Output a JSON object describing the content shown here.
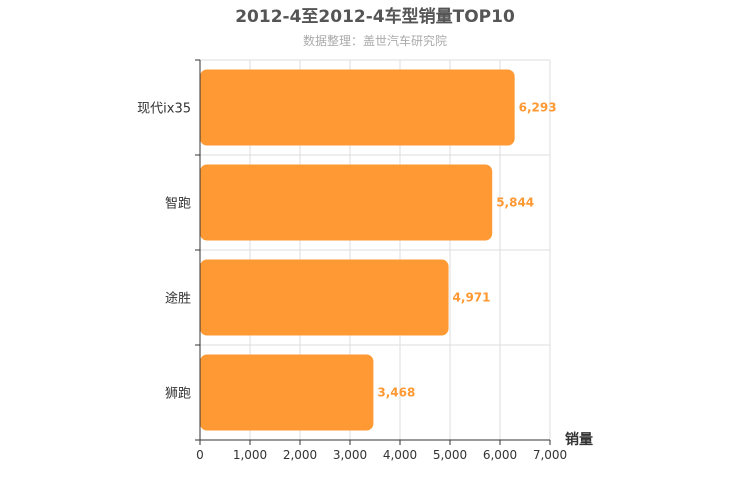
{
  "chart_data": {
    "type": "bar",
    "orientation": "horizontal",
    "title": "2012-4至2012-4车型销量TOP10",
    "subtitle": "数据整理：盖世汽车研究院",
    "categories": [
      "现代ix35",
      "智跑",
      "途胜",
      "狮跑"
    ],
    "values": [
      6293,
      5844,
      4971,
      3468
    ],
    "value_labels": [
      "6,293",
      "5,844",
      "4,971",
      "3,468"
    ],
    "xlabel": "销量",
    "ylabel": "",
    "xlim": [
      0,
      7000
    ],
    "ticks": [
      0,
      1000,
      2000,
      3000,
      4000,
      5000,
      6000,
      7000
    ],
    "tick_labels": [
      "0",
      "1,000",
      "2,000",
      "3,000",
      "4,000",
      "5,000",
      "6,000",
      "7,000"
    ],
    "grid": true,
    "legend": "none",
    "colors": {
      "bar": "#ff9933",
      "bar_label": "#ff9933",
      "grid": "#dddddd",
      "axis": "#333333"
    }
  }
}
